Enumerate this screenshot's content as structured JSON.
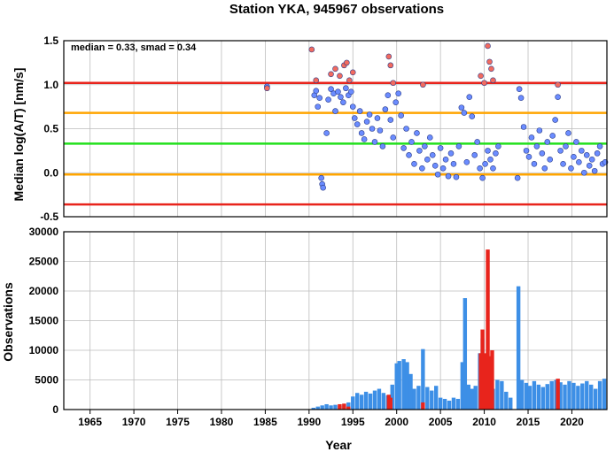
{
  "chart_data": [
    {
      "type": "scatter",
      "title": "Station YKA, 945967 observations",
      "annotation": "median = 0.33, smad = 0.34",
      "ylabel": "Median log(A/T) [nm/s]",
      "xlim": [
        1962,
        2024
      ],
      "ylim": [
        -0.5,
        1.5
      ],
      "yticks": [
        "-0.5",
        "0.0",
        "0.5",
        "1.0",
        "1.5"
      ],
      "grid": true,
      "reference_lines": [
        {
          "y": 1.02,
          "color": "#e8241c"
        },
        {
          "y": 0.68,
          "color": "#ffa500"
        },
        {
          "y": 0.33,
          "color": "#22e01c"
        },
        {
          "y": -0.02,
          "color": "#ffa500"
        },
        {
          "y": -0.36,
          "color": "#e8241c"
        }
      ],
      "series": [
        {
          "color": "#6b8cff",
          "points": [
            [
              1985.2,
              0.98
            ],
            [
              1990.6,
              0.88
            ],
            [
              1990.8,
              0.93
            ],
            [
              1991.0,
              0.75
            ],
            [
              1991.2,
              0.85
            ],
            [
              1991.4,
              -0.06
            ],
            [
              1991.5,
              -0.13
            ],
            [
              1991.6,
              -0.17
            ],
            [
              1992.0,
              0.45
            ],
            [
              1992.2,
              0.83
            ],
            [
              1992.5,
              0.95
            ],
            [
              1992.8,
              0.9
            ],
            [
              1993.0,
              0.7
            ],
            [
              1993.3,
              0.92
            ],
            [
              1993.6,
              0.86
            ],
            [
              1993.9,
              0.8
            ],
            [
              1994.2,
              0.96
            ],
            [
              1994.5,
              0.88
            ],
            [
              1994.8,
              0.92
            ],
            [
              1995.0,
              0.75
            ],
            [
              1995.2,
              0.62
            ],
            [
              1995.5,
              0.55
            ],
            [
              1995.8,
              0.7
            ],
            [
              1996.0,
              0.45
            ],
            [
              1996.3,
              0.38
            ],
            [
              1996.6,
              0.58
            ],
            [
              1996.9,
              0.66
            ],
            [
              1997.2,
              0.5
            ],
            [
              1997.5,
              0.35
            ],
            [
              1997.8,
              0.62
            ],
            [
              1998.1,
              0.48
            ],
            [
              1998.4,
              0.3
            ],
            [
              1998.7,
              0.72
            ],
            [
              1999.0,
              0.88
            ],
            [
              1999.3,
              0.6
            ],
            [
              1999.6,
              0.4
            ],
            [
              1999.9,
              0.8
            ],
            [
              2000.2,
              0.9
            ],
            [
              2000.5,
              0.65
            ],
            [
              2000.8,
              0.28
            ],
            [
              2001.1,
              0.5
            ],
            [
              2001.4,
              0.2
            ],
            [
              2001.7,
              0.35
            ],
            [
              2002.0,
              0.1
            ],
            [
              2002.3,
              0.45
            ],
            [
              2002.6,
              0.25
            ],
            [
              2002.9,
              0.05
            ],
            [
              2003.2,
              0.3
            ],
            [
              2003.5,
              0.15
            ],
            [
              2003.8,
              0.4
            ],
            [
              2004.1,
              0.2
            ],
            [
              2004.4,
              0.08
            ],
            [
              2004.7,
              -0.02
            ],
            [
              2005.0,
              0.28
            ],
            [
              2005.3,
              0.05
            ],
            [
              2005.6,
              0.15
            ],
            [
              2005.9,
              -0.04
            ],
            [
              2006.2,
              0.22
            ],
            [
              2006.5,
              0.1
            ],
            [
              2006.8,
              -0.05
            ],
            [
              2007.1,
              0.3
            ],
            [
              2007.4,
              0.74
            ],
            [
              2007.7,
              0.68
            ],
            [
              2008.0,
              0.12
            ],
            [
              2008.3,
              0.86
            ],
            [
              2008.6,
              0.64
            ],
            [
              2008.9,
              0.2
            ],
            [
              2009.2,
              0.35
            ],
            [
              2009.5,
              0.05
            ],
            [
              2009.8,
              -0.06
            ],
            [
              2010.1,
              0.1
            ],
            [
              2010.4,
              0.25
            ],
            [
              2010.7,
              0.15
            ],
            [
              2011.0,
              0.05
            ],
            [
              2011.3,
              0.22
            ],
            [
              2011.6,
              0.3
            ],
            [
              2013.8,
              -0.06
            ],
            [
              2014.0,
              0.95
            ],
            [
              2014.2,
              0.85
            ],
            [
              2014.5,
              0.52
            ],
            [
              2014.8,
              0.25
            ],
            [
              2015.1,
              0.18
            ],
            [
              2015.4,
              0.4
            ],
            [
              2015.7,
              0.1
            ],
            [
              2016.0,
              0.3
            ],
            [
              2016.3,
              0.48
            ],
            [
              2016.6,
              0.22
            ],
            [
              2016.9,
              0.05
            ],
            [
              2017.2,
              0.35
            ],
            [
              2017.5,
              0.15
            ],
            [
              2017.8,
              0.42
            ],
            [
              2018.1,
              0.6
            ],
            [
              2018.4,
              0.86
            ],
            [
              2018.7,
              0.25
            ],
            [
              2019.0,
              0.1
            ],
            [
              2019.3,
              0.3
            ],
            [
              2019.6,
              0.45
            ],
            [
              2019.9,
              0.05
            ],
            [
              2020.2,
              0.18
            ],
            [
              2020.5,
              0.35
            ],
            [
              2020.8,
              0.12
            ],
            [
              2021.1,
              0.25
            ],
            [
              2021.4,
              0.0
            ],
            [
              2021.7,
              0.2
            ],
            [
              2022.0,
              0.08
            ],
            [
              2022.3,
              0.15
            ],
            [
              2022.6,
              0.02
            ],
            [
              2022.9,
              0.22
            ],
            [
              2023.2,
              0.3
            ],
            [
              2023.5,
              0.1
            ],
            [
              2023.8,
              0.12
            ]
          ]
        },
        {
          "color": "#f26b5f",
          "points": [
            [
              1985.2,
              0.96
            ],
            [
              1990.3,
              1.4
            ],
            [
              1990.8,
              1.05
            ],
            [
              1992.5,
              1.12
            ],
            [
              1993.0,
              1.18
            ],
            [
              1993.5,
              1.1
            ],
            [
              1994.0,
              1.22
            ],
            [
              1994.3,
              1.25
            ],
            [
              1994.6,
              1.05
            ],
            [
              1995.0,
              1.14
            ],
            [
              1999.1,
              1.32
            ],
            [
              1999.3,
              1.22
            ],
            [
              1999.6,
              1.02
            ],
            [
              2003.0,
              1.0
            ],
            [
              2009.6,
              1.1
            ],
            [
              2010.0,
              1.02
            ],
            [
              2010.4,
              1.44
            ],
            [
              2010.6,
              1.26
            ],
            [
              2010.8,
              1.18
            ],
            [
              2011.0,
              1.05
            ],
            [
              2018.4,
              1.0
            ]
          ]
        }
      ]
    },
    {
      "type": "bar",
      "xlabel": "Year",
      "ylabel": "Observations",
      "xlim": [
        1962,
        2024
      ],
      "ylim": [
        0,
        30000
      ],
      "xticks": [
        "1965",
        "1970",
        "1975",
        "1980",
        "1985",
        "1990",
        "1995",
        "2000",
        "2005",
        "2010",
        "2015",
        "2020"
      ],
      "yticks": [
        "0",
        "5000",
        "10000",
        "15000",
        "20000",
        "25000",
        "30000"
      ],
      "grid": true,
      "series": [
        {
          "color": "#3d8fe6",
          "points": [
            [
              1990.5,
              300
            ],
            [
              1991,
              500
            ],
            [
              1991.5,
              700
            ],
            [
              1992,
              900
            ],
            [
              1992.5,
              700
            ],
            [
              1993,
              800
            ],
            [
              1993.5,
              600
            ],
            [
              1994,
              900
            ],
            [
              1994.5,
              1200
            ],
            [
              1995,
              2200
            ],
            [
              1995.5,
              2800
            ],
            [
              1996,
              2500
            ],
            [
              1996.5,
              3000
            ],
            [
              1997,
              2700
            ],
            [
              1997.5,
              3200
            ],
            [
              1998,
              3500
            ],
            [
              1998.5,
              2800
            ],
            [
              1999,
              2400
            ],
            [
              1999.5,
              4200
            ],
            [
              2000,
              7800
            ],
            [
              2000.3,
              8200
            ],
            [
              2000.8,
              8500
            ],
            [
              2001.2,
              8000
            ],
            [
              2001.6,
              6000
            ],
            [
              2002,
              3500
            ],
            [
              2002.5,
              4000
            ],
            [
              2003,
              10200
            ],
            [
              2003.5,
              3800
            ],
            [
              2004,
              3200
            ],
            [
              2004.5,
              4000
            ],
            [
              2005,
              2000
            ],
            [
              2005.5,
              1800
            ],
            [
              2006,
              1500
            ],
            [
              2006.5,
              2000
            ],
            [
              2007,
              1800
            ],
            [
              2007.5,
              8000
            ],
            [
              2007.8,
              18800
            ],
            [
              2008.2,
              4200
            ],
            [
              2008.6,
              3500
            ],
            [
              2009,
              4000
            ],
            [
              2009.5,
              9500
            ],
            [
              2009.8,
              12000
            ],
            [
              2010.3,
              8000
            ],
            [
              2011,
              3500
            ],
            [
              2011.5,
              5000
            ],
            [
              2012,
              4800
            ],
            [
              2012.5,
              3000
            ],
            [
              2013,
              2000
            ],
            [
              2013.9,
              20800
            ],
            [
              2014.3,
              5000
            ],
            [
              2014.8,
              4500
            ],
            [
              2015.2,
              4000
            ],
            [
              2015.7,
              4800
            ],
            [
              2016.2,
              4200
            ],
            [
              2016.7,
              3800
            ],
            [
              2017.2,
              4300
            ],
            [
              2017.7,
              4800
            ],
            [
              2018.2,
              5000
            ],
            [
              2018.7,
              4600
            ],
            [
              2019.2,
              4200
            ],
            [
              2019.7,
              4800
            ],
            [
              2020.2,
              4500
            ],
            [
              2020.7,
              4000
            ],
            [
              2021.2,
              4400
            ],
            [
              2021.7,
              4800
            ],
            [
              2022.2,
              4200
            ],
            [
              2022.7,
              3500
            ],
            [
              2023.2,
              4800
            ],
            [
              2023.7,
              5200
            ]
          ]
        },
        {
          "color": "#e8241c",
          "points": [
            [
              1993.5,
              900
            ],
            [
              1994,
              1000
            ],
            [
              1994.5,
              500
            ],
            [
              1999.1,
              2500
            ],
            [
              1999.3,
              2000
            ],
            [
              2003,
              1200
            ],
            [
              2009.6,
              9500
            ],
            [
              2009.8,
              13500
            ],
            [
              2010.2,
              9500
            ],
            [
              2010.4,
              27000
            ],
            [
              2010.6,
              9000
            ],
            [
              2010.9,
              10000
            ],
            [
              2018.4,
              5200
            ]
          ]
        }
      ]
    }
  ]
}
